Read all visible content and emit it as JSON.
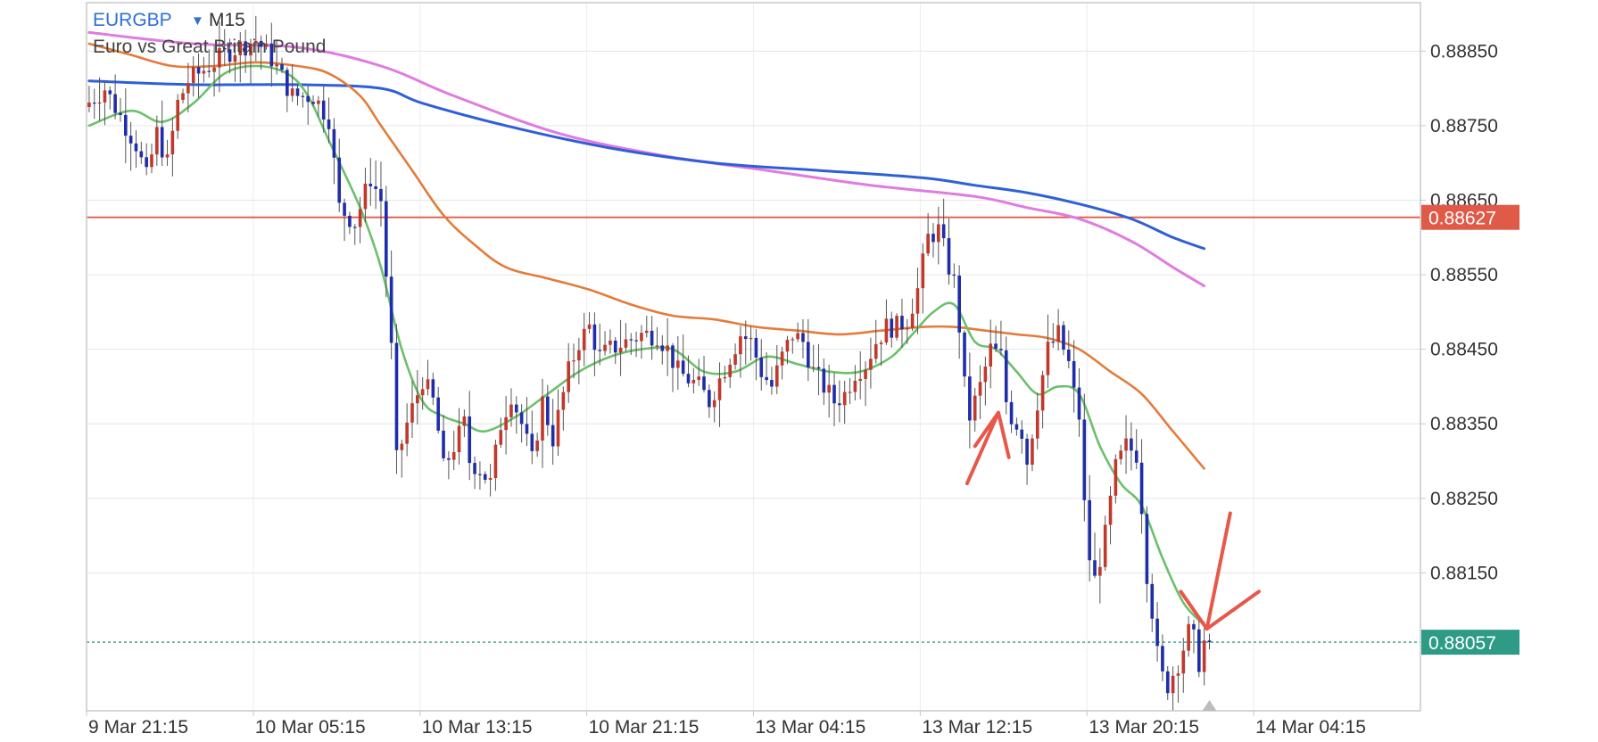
{
  "header": {
    "symbol": "EURGBP",
    "dropdown_icon": "caret-down-icon",
    "timeframe": "M15",
    "description": "Euro vs Great Britain Pound"
  },
  "colors": {
    "bull_candle": "#c0392b",
    "bear_candle": "#1f2ea8",
    "ma_fast": "#6cc06c",
    "ma_mid": "#e47b3a",
    "ma_slow": "#2f5fd8",
    "ma_slowest": "#e07be0",
    "horizontal_line": "#e05a48",
    "current_price": "#2e9b86",
    "annotation": "#e8574a",
    "frame": "#c8c8c8"
  },
  "price_tags": {
    "horizontal_line": "0.88627",
    "current_price": "0.88057"
  },
  "chart_data": {
    "type": "candlestick",
    "title": "",
    "y_range": [
      0.87965,
      0.88915
    ],
    "y_ticks": [
      "0.88850",
      "0.88750",
      "0.88650",
      "0.88550",
      "0.88450",
      "0.88350",
      "0.88250",
      "0.88150"
    ],
    "x_labels": [
      "9 Mar 21:15",
      "10 Mar 05:15",
      "10 Mar 13:15",
      "10 Mar 21:15",
      "13 Mar 04:15",
      "13 Mar 12:15",
      "13 Mar 20:15",
      "14 Mar 04:15"
    ],
    "bars_per_label": 32,
    "total_slots": 256,
    "last_bar_index": 215,
    "horizontal_line": 0.88627,
    "current_price": 0.88057,
    "anchors": [
      [
        0,
        0.88775
      ],
      [
        4,
        0.888
      ],
      [
        10,
        0.88725
      ],
      [
        12,
        0.8868
      ],
      [
        14,
        0.8874
      ],
      [
        16,
        0.887
      ],
      [
        18,
        0.8878
      ],
      [
        20,
        0.8881
      ],
      [
        24,
        0.8883
      ],
      [
        28,
        0.8885
      ],
      [
        33,
        0.88865
      ],
      [
        36,
        0.8884
      ],
      [
        40,
        0.8879
      ],
      [
        44,
        0.8879
      ],
      [
        47,
        0.8876
      ],
      [
        48,
        0.887
      ],
      [
        49,
        0.8864
      ],
      [
        52,
        0.8862
      ],
      [
        55,
        0.8868
      ],
      [
        57,
        0.8865
      ],
      [
        58,
        0.8855
      ],
      [
        59,
        0.8845
      ],
      [
        60,
        0.883
      ],
      [
        62,
        0.8835
      ],
      [
        65,
        0.8841
      ],
      [
        67,
        0.8838
      ],
      [
        68,
        0.8834
      ],
      [
        69,
        0.8829
      ],
      [
        71,
        0.8832
      ],
      [
        73,
        0.8835
      ],
      [
        74,
        0.883
      ],
      [
        76,
        0.8829
      ],
      [
        78,
        0.8827
      ],
      [
        80,
        0.8835
      ],
      [
        82,
        0.8839
      ],
      [
        84,
        0.8835
      ],
      [
        86,
        0.883
      ],
      [
        88,
        0.8838
      ],
      [
        90,
        0.8833
      ],
      [
        93,
        0.8842
      ],
      [
        95,
        0.8846
      ],
      [
        97,
        0.8848
      ],
      [
        99,
        0.8844
      ],
      [
        101,
        0.8845
      ],
      [
        104,
        0.8846
      ],
      [
        107,
        0.8847
      ],
      [
        110,
        0.8847
      ],
      [
        112,
        0.8845
      ],
      [
        114,
        0.8842
      ],
      [
        116,
        0.8841
      ],
      [
        118,
        0.884
      ],
      [
        120,
        0.8838
      ],
      [
        122,
        0.8841
      ],
      [
        124,
        0.8844
      ],
      [
        126,
        0.8847
      ],
      [
        128,
        0.8846
      ],
      [
        130,
        0.8842
      ],
      [
        132,
        0.884
      ],
      [
        134,
        0.8844
      ],
      [
        136,
        0.8847
      ],
      [
        138,
        0.8846
      ],
      [
        140,
        0.8842
      ],
      [
        142,
        0.884
      ],
      [
        144,
        0.8838
      ],
      [
        146,
        0.8839
      ],
      [
        148,
        0.8842
      ],
      [
        150,
        0.8843
      ],
      [
        152,
        0.8846
      ],
      [
        154,
        0.8848
      ],
      [
        156,
        0.8848
      ],
      [
        158,
        0.8849
      ],
      [
        160,
        0.8853
      ],
      [
        162,
        0.886
      ],
      [
        164,
        0.8861
      ],
      [
        166,
        0.8856
      ],
      [
        167,
        0.8854
      ],
      [
        168,
        0.8848
      ],
      [
        169,
        0.884
      ],
      [
        170,
        0.8836
      ],
      [
        172,
        0.884
      ],
      [
        174,
        0.8845
      ],
      [
        176,
        0.8844
      ],
      [
        177,
        0.8838
      ],
      [
        178,
        0.8836
      ],
      [
        180,
        0.8834
      ],
      [
        181,
        0.883
      ],
      [
        183,
        0.8838
      ],
      [
        185,
        0.8845
      ],
      [
        187,
        0.8847
      ],
      [
        189,
        0.8843
      ],
      [
        190,
        0.8839
      ],
      [
        191,
        0.8836
      ],
      [
        192,
        0.8824
      ],
      [
        193,
        0.8817
      ],
      [
        194,
        0.8814
      ],
      [
        196,
        0.882
      ],
      [
        198,
        0.8829
      ],
      [
        200,
        0.8832
      ],
      [
        202,
        0.8831
      ],
      [
        203,
        0.8824
      ],
      [
        204,
        0.8815
      ],
      [
        205,
        0.881
      ],
      [
        206,
        0.8804
      ],
      [
        207,
        0.8801
      ],
      [
        208,
        0.88
      ],
      [
        210,
        0.8803
      ],
      [
        212,
        0.8807
      ],
      [
        213,
        0.8806
      ],
      [
        214,
        0.8803
      ],
      [
        215,
        0.88057
      ]
    ],
    "series": [
      {
        "points": [
          [
            0,
            0.8875
          ],
          [
            8,
            0.8877
          ],
          [
            14,
            0.88755
          ],
          [
            20,
            0.8878
          ],
          [
            26,
            0.8882
          ],
          [
            32,
            0.8883
          ],
          [
            38,
            0.8882
          ],
          [
            42,
            0.8879
          ],
          [
            46,
            0.8873
          ],
          [
            52,
            0.8864
          ],
          [
            56,
            0.8856
          ],
          [
            60,
            0.8845
          ],
          [
            64,
            0.8838
          ],
          [
            68,
            0.8836
          ],
          [
            72,
            0.8835
          ],
          [
            76,
            0.8834
          ],
          [
            82,
            0.8836
          ],
          [
            88,
            0.8839
          ],
          [
            94,
            0.8842
          ],
          [
            100,
            0.8844
          ],
          [
            106,
            0.8845
          ],
          [
            112,
            0.8845
          ],
          [
            118,
            0.8842
          ],
          [
            124,
            0.8842
          ],
          [
            130,
            0.8844
          ],
          [
            136,
            0.8843
          ],
          [
            142,
            0.8842
          ],
          [
            148,
            0.8842
          ],
          [
            154,
            0.8844
          ],
          [
            158,
            0.8847
          ],
          [
            162,
            0.885
          ],
          [
            166,
            0.8851
          ],
          [
            170,
            0.8846
          ],
          [
            174,
            0.8845
          ],
          [
            178,
            0.8842
          ],
          [
            182,
            0.8839
          ],
          [
            186,
            0.884
          ],
          [
            190,
            0.8839
          ],
          [
            194,
            0.8832
          ],
          [
            198,
            0.8827
          ],
          [
            202,
            0.8824
          ],
          [
            206,
            0.8817
          ],
          [
            210,
            0.8811
          ],
          [
            214,
            0.8808
          ]
        ]
      },
      {
        "points": [
          [
            0,
            0.8886
          ],
          [
            8,
            0.88845
          ],
          [
            16,
            0.8883
          ],
          [
            24,
            0.8883
          ],
          [
            32,
            0.88835
          ],
          [
            40,
            0.8883
          ],
          [
            46,
            0.8882
          ],
          [
            52,
            0.8879
          ],
          [
            56,
            0.8875
          ],
          [
            62,
            0.8869
          ],
          [
            68,
            0.8863
          ],
          [
            74,
            0.8859
          ],
          [
            80,
            0.8856
          ],
          [
            88,
            0.88545
          ],
          [
            96,
            0.8853
          ],
          [
            104,
            0.8851
          ],
          [
            112,
            0.88495
          ],
          [
            120,
            0.8849
          ],
          [
            128,
            0.8848
          ],
          [
            136,
            0.88475
          ],
          [
            144,
            0.8847
          ],
          [
            152,
            0.88475
          ],
          [
            160,
            0.8848
          ],
          [
            166,
            0.8848
          ],
          [
            172,
            0.88475
          ],
          [
            178,
            0.8847
          ],
          [
            184,
            0.88465
          ],
          [
            190,
            0.8845
          ],
          [
            196,
            0.8842
          ],
          [
            202,
            0.8839
          ],
          [
            208,
            0.8834
          ],
          [
            214,
            0.8829
          ]
        ]
      },
      {
        "points": [
          [
            0,
            0.8881
          ],
          [
            20,
            0.88805
          ],
          [
            40,
            0.88805
          ],
          [
            56,
            0.888
          ],
          [
            64,
            0.8878
          ],
          [
            80,
            0.8875
          ],
          [
            100,
            0.8872
          ],
          [
            120,
            0.887
          ],
          [
            140,
            0.8869
          ],
          [
            160,
            0.8868
          ],
          [
            170,
            0.8867
          ],
          [
            180,
            0.8866
          ],
          [
            190,
            0.88645
          ],
          [
            200,
            0.88625
          ],
          [
            208,
            0.886
          ],
          [
            214,
            0.88585
          ]
        ]
      },
      {
        "points": [
          [
            0,
            0.88875
          ],
          [
            20,
            0.8886
          ],
          [
            40,
            0.88855
          ],
          [
            56,
            0.8883
          ],
          [
            70,
            0.8879
          ],
          [
            90,
            0.8874
          ],
          [
            110,
            0.8871
          ],
          [
            130,
            0.8869
          ],
          [
            150,
            0.8867
          ],
          [
            170,
            0.88655
          ],
          [
            180,
            0.8864
          ],
          [
            190,
            0.88625
          ],
          [
            200,
            0.88595
          ],
          [
            208,
            0.8856
          ],
          [
            214,
            0.88535
          ]
        ]
      }
    ]
  }
}
